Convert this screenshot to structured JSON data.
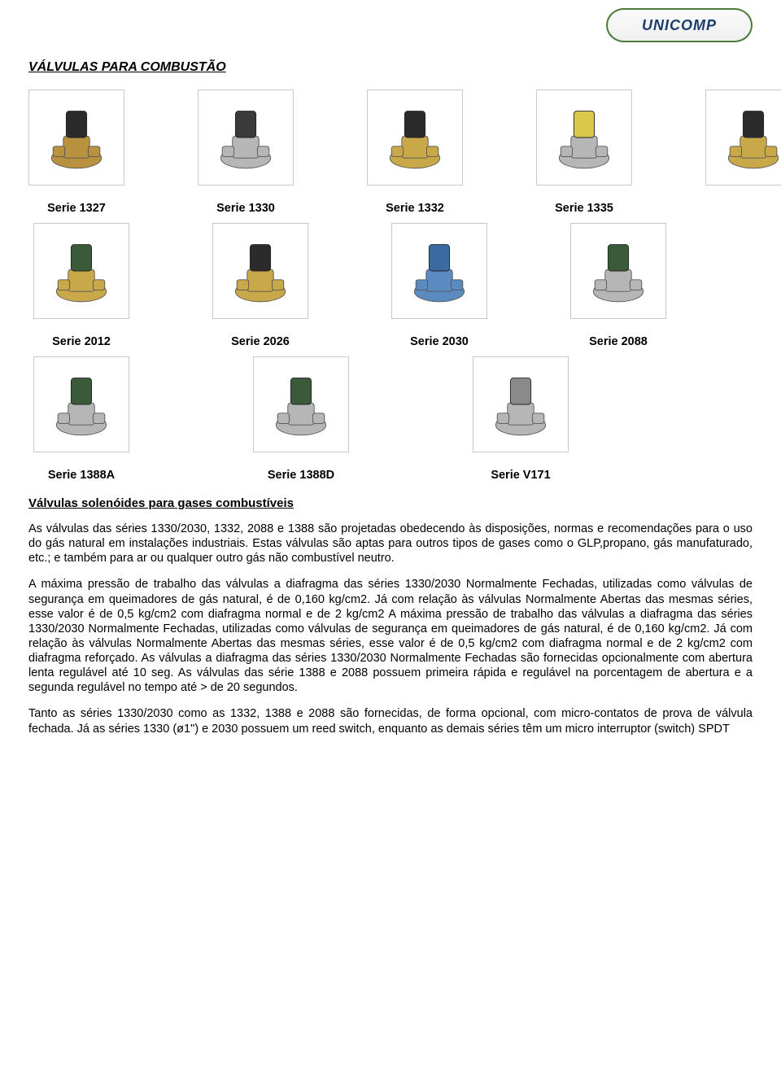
{
  "logo_text": "UNICOMP",
  "page_title": "VÁLVULAS PARA COMBUSTÃO",
  "subheading": "Válvulas solenóides para gases combustíveis",
  "thumb_border_color": "#c8c8c8",
  "thumb_bg": "#ffffff",
  "rows": [
    {
      "items": [
        {
          "label": "Serie 1327",
          "colors": [
            "#2b2b2b",
            "#b8923e"
          ]
        },
        {
          "label": "Serie 1330",
          "colors": [
            "#3a3a3a",
            "#b6b6b6"
          ]
        },
        {
          "label": "Serie 1332",
          "colors": [
            "#2b2b2b",
            "#c9a84a"
          ]
        },
        {
          "label": "Serie 1335",
          "colors": [
            "#d8c94a",
            "#b6b6b6"
          ]
        }
      ],
      "trailing": [
        {
          "label": "",
          "colors": [
            "#2b2b2b",
            "#c9a84a"
          ]
        }
      ]
    },
    {
      "items": [
        {
          "label": "Serie 2012",
          "colors": [
            "#3a5a3a",
            "#c9a84a"
          ]
        },
        {
          "label": "Serie 2026",
          "colors": [
            "#2b2b2b",
            "#c9a84a"
          ]
        },
        {
          "label": "Serie 2030",
          "colors": [
            "#3a6aa0",
            "#5a8ac0"
          ]
        },
        {
          "label": "Serie 2088",
          "colors": [
            "#3a5a3a",
            "#b6b6b6"
          ]
        }
      ]
    },
    {
      "items": [
        {
          "label": "Serie 1388A",
          "colors": [
            "#3a5a3a",
            "#b6b6b6"
          ]
        },
        {
          "label": "Serie 1388D",
          "colors": [
            "#3a5a3a",
            "#b6b6b6"
          ]
        },
        {
          "label": "Serie V171",
          "colors": [
            "#8a8a8a",
            "#b6b6b6"
          ]
        }
      ]
    }
  ],
  "paragraphs": [
    "As válvulas das séries 1330/2030, 1332, 2088 e 1388 são projetadas obedecendo às disposições, normas e recomendações para o uso do gás natural em instalações industriais. Estas válvulas são aptas para outros tipos de gases como o GLP,propano, gás manufaturado, etc.; e também para ar ou qualquer outro gás não combustível neutro.",
    "A máxima pressão de trabalho das válvulas a diafragma das séries 1330/2030 Normalmente Fechadas, utilizadas como válvulas de segurança em queimadores de gás natural, é de 0,160 kg/cm2. Já com relação às válvulas Normalmente Abertas das mesmas séries, esse valor é de 0,5 kg/cm2 com diafragma normal e de 2 kg/cm2 A máxima pressão de trabalho das válvulas a diafragma das séries 1330/2030 Normalmente Fechadas, utilizadas como válvulas de segurança em queimadores de gás natural, é de 0,160 kg/cm2. Já com relação às válvulas Normalmente Abertas das mesmas séries, esse valor é de 0,5 kg/cm2 com diafragma normal e de 2 kg/cm2 com diafragma reforçado. As válvulas a diafragma das séries 1330/2030 Normalmente Fechadas são fornecidas opcionalmente com abertura lenta regulável até 10 seg. As válvulas das série 1388 e 2088 possuem primeira rápida e regulável na porcentagem de abertura e a segunda regulável no tempo até > de 20 segundos.",
    "Tanto as séries 1330/2030 como as 1332, 1388 e 2088 são fornecidas, de forma opcional, com micro-contatos de prova de válvula fechada. Já as séries 1330 (ø1\") e 2030 possuem um reed switch, enquanto as demais séries têm um micro interruptor (switch) SPDT"
  ]
}
